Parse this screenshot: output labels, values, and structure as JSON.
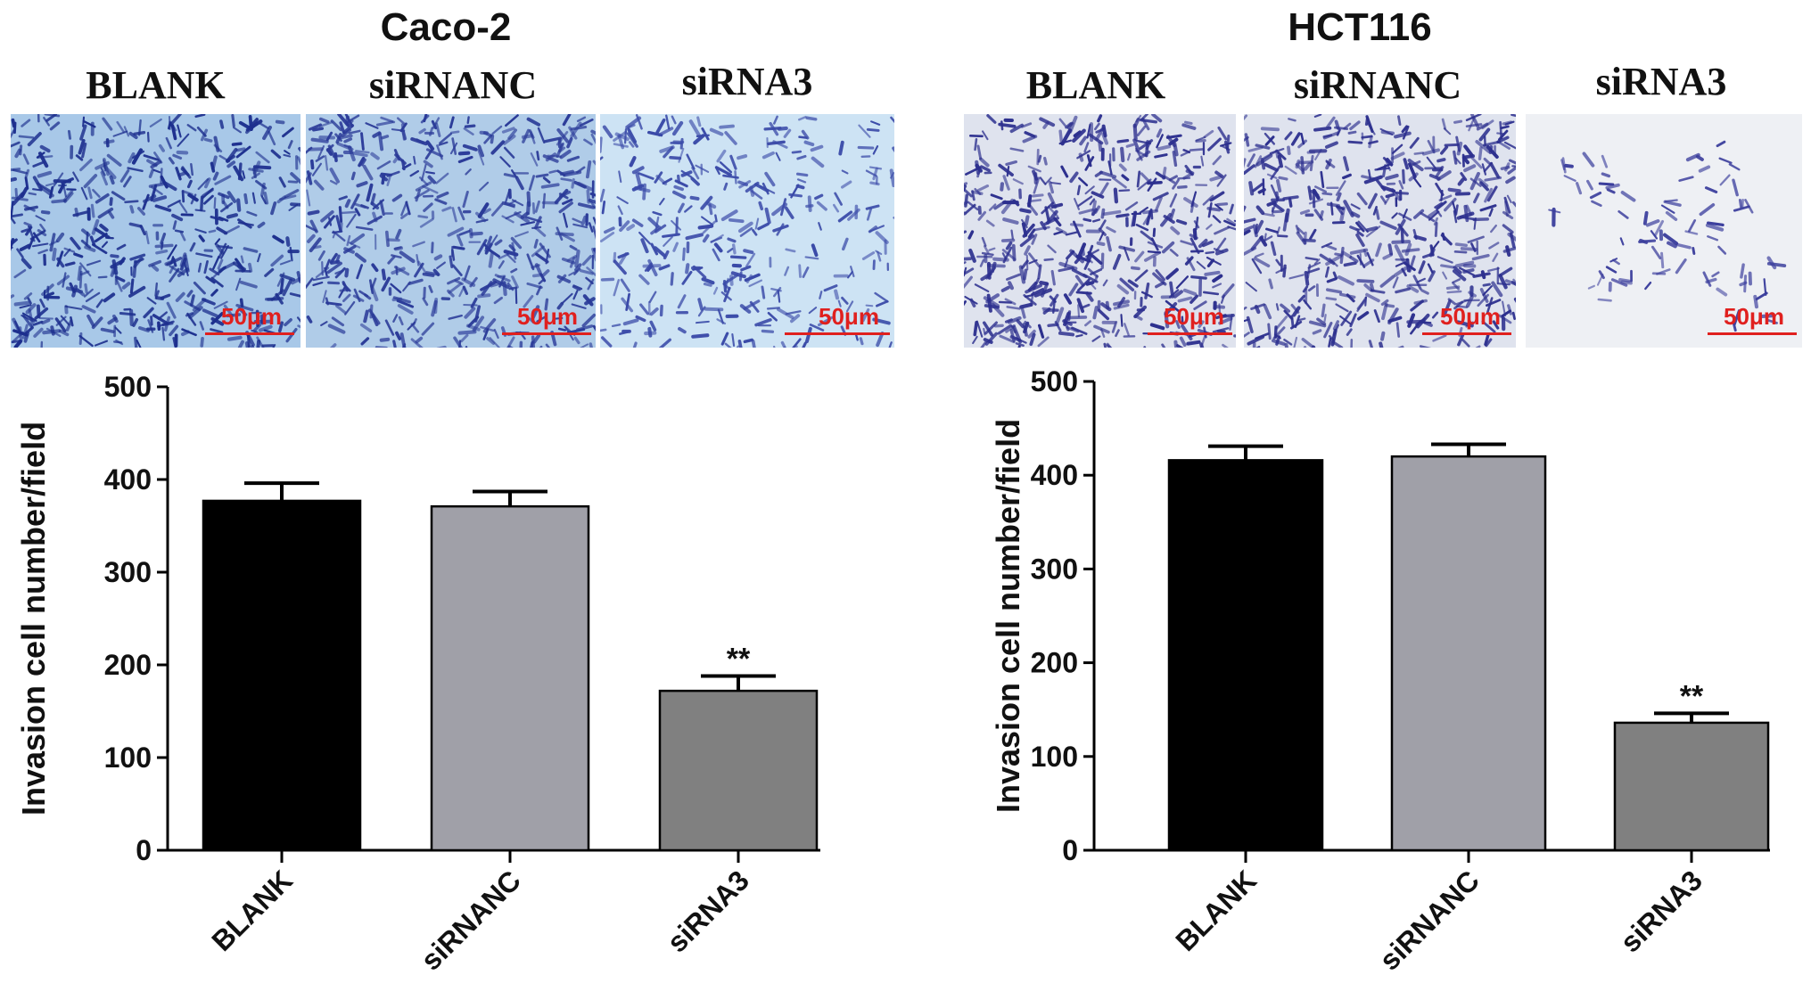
{
  "panels": [
    {
      "cell_line": "Caco-2",
      "image_labels": [
        "BLANK",
        "siRNANC",
        "siRNA3"
      ],
      "scale_label": "50μm",
      "image_tints": [
        "#1d2f8e",
        "#2a3a98",
        "#3a4aa8"
      ],
      "image_bg": [
        "#a8c8e8",
        "#b0cce8",
        "#cde3f4"
      ],
      "image_density": [
        "high",
        "high",
        "medium"
      ]
    },
    {
      "cell_line": "HCT116",
      "image_labels": [
        "BLANK",
        "siRNANC",
        "siRNA3"
      ],
      "scale_label": "50μm",
      "image_tints": [
        "#2c2f8e",
        "#2c2f8e",
        "#3a3d9c"
      ],
      "image_bg": [
        "#dfe3ee",
        "#dfe3ee",
        "#eef0f4"
      ],
      "image_density": [
        "high",
        "high",
        "low"
      ]
    }
  ],
  "chart_data": [
    {
      "type": "bar",
      "title": "Caco-2",
      "categories": [
        "BLANK",
        "siRNANC",
        "siRNA3"
      ],
      "values": [
        377,
        371,
        172
      ],
      "errors": [
        19,
        16,
        16
      ],
      "annotations": [
        "",
        "",
        "**"
      ],
      "colors": [
        "#000000",
        "#a0a0a8",
        "#808080"
      ],
      "xlabel": "",
      "ylabel": "Invasion cell number/field",
      "ylim": [
        0,
        500
      ],
      "yticks": [
        0,
        100,
        200,
        300,
        400,
        500
      ],
      "grid": false
    },
    {
      "type": "bar",
      "title": "HCT116",
      "categories": [
        "BLANK",
        "siRNANC",
        "siRNA3"
      ],
      "values": [
        416,
        420,
        136
      ],
      "errors": [
        15,
        13,
        10
      ],
      "annotations": [
        "",
        "",
        "**"
      ],
      "colors": [
        "#000000",
        "#a0a0a8",
        "#808080"
      ],
      "xlabel": "",
      "ylabel": "Invasion cell number/field",
      "ylim": [
        0,
        500
      ],
      "yticks": [
        0,
        100,
        200,
        300,
        400,
        500
      ],
      "grid": false
    }
  ]
}
